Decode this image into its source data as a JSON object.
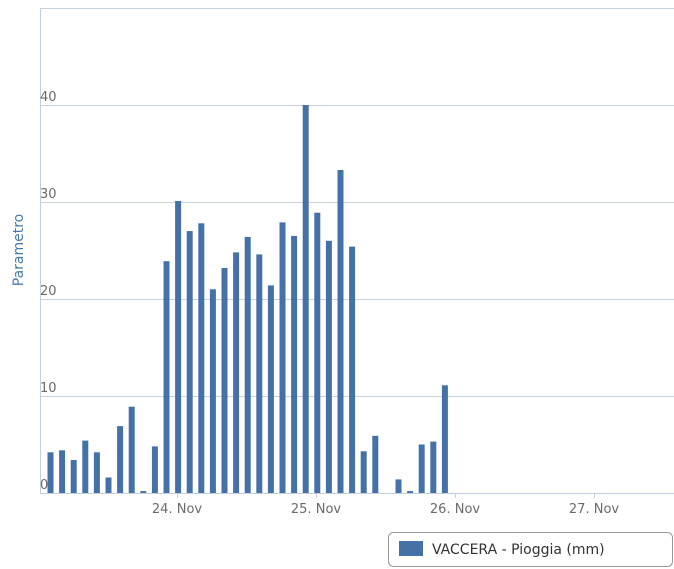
{
  "chart_data": {
    "type": "bar",
    "title": "",
    "ylabel": "Parametro",
    "xlabel": "",
    "ylim": [
      0,
      50
    ],
    "y_ticks": [
      0,
      10,
      20,
      30,
      40
    ],
    "x_ticks": [
      "24. Nov",
      "25. Nov",
      "26. Nov",
      "27. Nov"
    ],
    "grid": true,
    "legend_position": "bottom-right",
    "series": [
      {
        "name": "VACCERA - Pioggia (mm)",
        "color": "#4472a8",
        "values": [
          4.2,
          4.4,
          3.4,
          5.4,
          4.2,
          1.6,
          6.9,
          8.9,
          0.2,
          4.8,
          23.9,
          30.1,
          27.0,
          27.8,
          21.0,
          23.2,
          24.8,
          26.4,
          24.6,
          21.4,
          27.9,
          26.5,
          40.0,
          28.9,
          26.0,
          33.3,
          25.4,
          4.3,
          5.9,
          0,
          1.4,
          0.2,
          5.0,
          5.3,
          11.1
        ]
      }
    ]
  }
}
